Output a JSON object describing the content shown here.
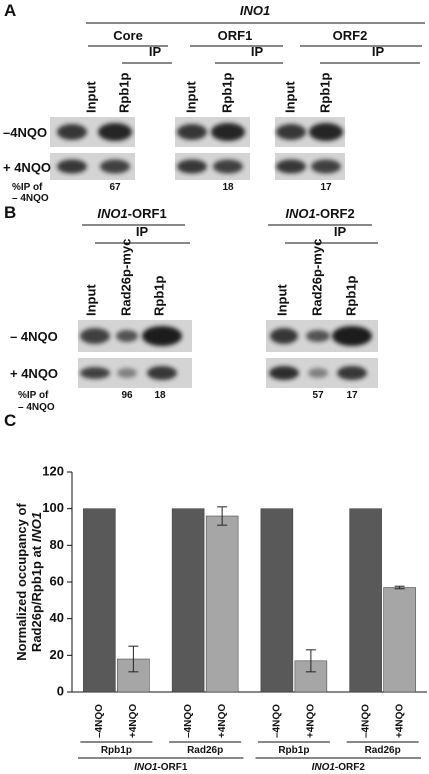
{
  "panel_a": {
    "letter": "A",
    "gene": "INO1",
    "regions": [
      "Core",
      "ORF1",
      "ORF2"
    ],
    "ip": "IP",
    "lanes": [
      "Input",
      "Rpb1p"
    ],
    "conditions": [
      "–4NQO",
      "+ 4NQO"
    ],
    "pct_label": [
      "%IP of",
      "– 4NQO"
    ],
    "pct_values": [
      67,
      18,
      17
    ]
  },
  "panel_b": {
    "letter": "B",
    "targets": [
      {
        "gene": "INO1",
        "region": "-ORF1"
      },
      {
        "gene": "INO1",
        "region": "-ORF2"
      }
    ],
    "ip": "IP",
    "lanes": [
      "Input",
      "Rad26p-myc",
      "Rpb1p"
    ],
    "conditions": [
      "– 4NQO",
      "+ 4NQO"
    ],
    "pct_label": [
      "%IP of",
      "– 4NQO"
    ],
    "pct_values": [
      [
        96,
        18
      ],
      [
        57,
        17
      ]
    ]
  },
  "chart_data": {
    "type": "bar",
    "letter": "C",
    "ylabel": {
      "line1": "Normalized occupancy of",
      "line2": "Rad26p/Rpb1p at ",
      "line2_italic": "INO1"
    },
    "categories": [
      "Rpb1p",
      "Rad26p",
      "Rpb1p",
      "Rad26p"
    ],
    "groups": [
      {
        "gene": "INO1",
        "region": "-ORF1"
      },
      {
        "gene": "INO1",
        "region": "-ORF2"
      }
    ],
    "series": [
      {
        "name": "–4NQO",
        "color": "#595959",
        "values": [
          100,
          100,
          100,
          100
        ]
      },
      {
        "name": "+4NQO",
        "color": "#a6a6a6",
        "values": [
          18,
          96,
          17,
          57
        ],
        "errors": [
          7,
          5,
          6,
          0.7
        ]
      }
    ],
    "ylim": [
      0,
      120
    ],
    "yticks": [
      0,
      20,
      40,
      60,
      80,
      100,
      120
    ]
  }
}
